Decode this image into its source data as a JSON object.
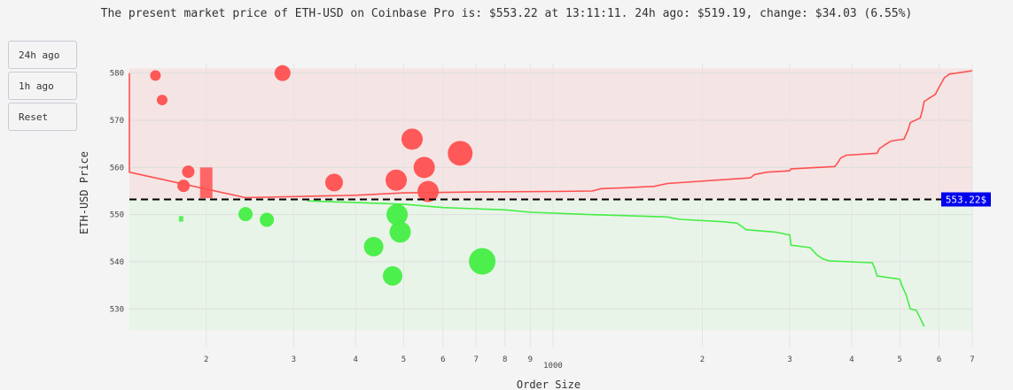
{
  "header": {
    "title": "The present market price of ETH-USD on Coinbase Pro is: $553.22 at 13:11:11. 24h ago: $519.19, change: $34.03 (6.55%)"
  },
  "buttons": {
    "h24": "24h ago",
    "h1": "1h ago",
    "reset": "Reset"
  },
  "chart_data": {
    "type": "scatter",
    "title": "The present market price of ETH-USD on Coinbase Pro is: $553.22 at 13:11:11. 24h ago: $519.19, change: $34.03 (6.55%)",
    "xlabel": "Order Size",
    "ylabel": "ETH-USD Price",
    "x_scale": "log",
    "xlim": [
      140,
      7000
    ],
    "ylim": [
      522,
      582
    ],
    "x_tick_labels": [
      "2",
      "3",
      "4",
      "5",
      "6",
      "7",
      "8",
      "9",
      "1000",
      "2",
      "3",
      "4",
      "5",
      "6",
      "7"
    ],
    "y_ticks": [
      530,
      540,
      550,
      560,
      570,
      580
    ],
    "grid": true,
    "current_price": 553.22,
    "current_price_label": "553.22$",
    "colors": {
      "ask": "#ff5050",
      "bid": "#44ee44",
      "ask_zone": "#f5e4e4",
      "bid_zone": "#e9f4e9",
      "price_label_bg": "#0000ee",
      "price_label_text": "#ffffff"
    },
    "ask_zone": [
      553.22,
      581
    ],
    "bid_zone": [
      525.5,
      553.22
    ],
    "ask_points": [
      {
        "x": 158,
        "y": 579.5,
        "size": 6
      },
      {
        "x": 163,
        "y": 574.3,
        "size": 6
      },
      {
        "x": 180,
        "y": 556.1,
        "size": 7
      },
      {
        "x": 184,
        "y": 559.1,
        "size": 7
      },
      {
        "x": 285,
        "y": 580.0,
        "size": 9
      },
      {
        "x": 362,
        "y": 556.8,
        "size": 10
      },
      {
        "x": 483,
        "y": 557.3,
        "size": 12
      },
      {
        "x": 520,
        "y": 566.0,
        "size": 12
      },
      {
        "x": 550,
        "y": 560.0,
        "size": 12
      },
      {
        "x": 560,
        "y": 554.9,
        "size": 12
      },
      {
        "x": 650,
        "y": 563.0,
        "size": 14
      }
    ],
    "ask_bars": [
      {
        "x": 200,
        "y_low": 553.5,
        "y_high": 560
      }
    ],
    "bid_points": [
      {
        "x": 240,
        "y": 550.1,
        "size": 8
      },
      {
        "x": 265,
        "y": 548.9,
        "size": 8
      },
      {
        "x": 435,
        "y": 543.2,
        "size": 11
      },
      {
        "x": 475,
        "y": 537.0,
        "size": 11
      },
      {
        "x": 485,
        "y": 550.0,
        "size": 12
      },
      {
        "x": 492,
        "y": 546.3,
        "size": 12
      },
      {
        "x": 720,
        "y": 540.1,
        "size": 15
      }
    ],
    "bid_bars": [
      {
        "x": 178,
        "y_low": 548.5,
        "y_high": 549.7
      }
    ],
    "ask_curve": [
      [
        140,
        559
      ],
      [
        140,
        580
      ],
      [
        140,
        559
      ],
      [
        240,
        553.6
      ],
      [
        400,
        554.1
      ],
      [
        500,
        554.6
      ],
      [
        700,
        554.8
      ],
      [
        1000,
        554.9
      ],
      [
        1200,
        555.0
      ],
      [
        1250,
        555.5
      ],
      [
        1400,
        555.7
      ],
      [
        1600,
        556.0
      ],
      [
        1700,
        556.6
      ],
      [
        2500,
        557.8
      ],
      [
        2550,
        558.5
      ],
      [
        2700,
        559.0
      ],
      [
        3000,
        559.3
      ],
      [
        3020,
        559.7
      ],
      [
        3700,
        560.2
      ],
      [
        3750,
        561.0
      ],
      [
        3800,
        562.0
      ],
      [
        3900,
        562.6
      ],
      [
        4500,
        563.0
      ],
      [
        4550,
        564.0
      ],
      [
        4700,
        565.0
      ],
      [
        4800,
        565.6
      ],
      [
        5100,
        566.0
      ],
      [
        5150,
        567.0
      ],
      [
        5200,
        568.0
      ],
      [
        5250,
        569.5
      ],
      [
        5500,
        570.5
      ],
      [
        5550,
        572.0
      ],
      [
        5600,
        574.0
      ],
      [
        5900,
        575.5
      ],
      [
        6000,
        577.0
      ],
      [
        6150,
        579.0
      ],
      [
        6300,
        579.8
      ],
      [
        6500,
        580.0
      ],
      [
        7000,
        580.5
      ]
    ],
    "bid_curve": [
      [
        320,
        552.9
      ],
      [
        500,
        552.2
      ],
      [
        600,
        551.5
      ],
      [
        800,
        551.0
      ],
      [
        900,
        550.5
      ],
      [
        1200,
        550.0
      ],
      [
        1700,
        549.5
      ],
      [
        1800,
        549.0
      ],
      [
        2200,
        548.5
      ],
      [
        2350,
        548.2
      ],
      [
        2400,
        547.5
      ],
      [
        2450,
        546.8
      ],
      [
        2800,
        546.3
      ],
      [
        3000,
        545.7
      ],
      [
        3020,
        543.5
      ],
      [
        3300,
        543.0
      ],
      [
        3400,
        541.5
      ],
      [
        3500,
        540.6
      ],
      [
        3600,
        540.2
      ],
      [
        4400,
        539.8
      ],
      [
        4450,
        538.7
      ],
      [
        4500,
        537.0
      ],
      [
        5000,
        536.3
      ],
      [
        5050,
        535.0
      ],
      [
        5150,
        533.0
      ],
      [
        5250,
        530.0
      ],
      [
        5400,
        529.7
      ],
      [
        5500,
        528.0
      ],
      [
        5600,
        526.3
      ]
    ]
  }
}
